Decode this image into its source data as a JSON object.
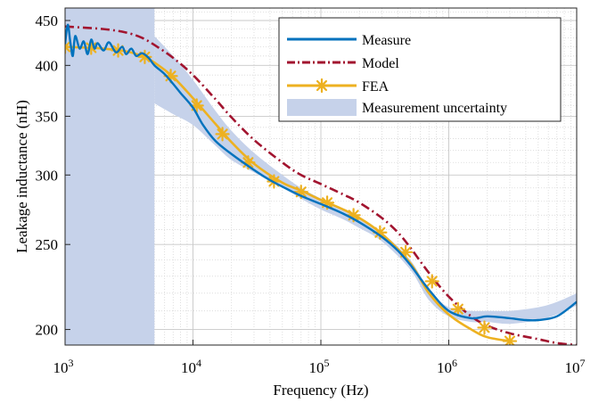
{
  "chart_data": {
    "type": "line",
    "xlabel": "Frequency (Hz)",
    "ylabel": "Leakage inductance (nH)",
    "x_scale": "log",
    "y_scale": "log",
    "xlim": [
      1000,
      10000000
    ],
    "ylim": [
      192,
      465
    ],
    "grid": true,
    "legend_placement": "top-right",
    "x_ticks": [
      {
        "value": 1000,
        "base": "10",
        "exp": "3"
      },
      {
        "value": 10000,
        "base": "10",
        "exp": "4"
      },
      {
        "value": 100000,
        "base": "10",
        "exp": "5"
      },
      {
        "value": 1000000,
        "base": "10",
        "exp": "6"
      },
      {
        "value": 10000000,
        "base": "10",
        "exp": "7"
      }
    ],
    "y_ticks": [
      200,
      250,
      300,
      350,
      400,
      450
    ],
    "uncertainty_band": {
      "name": "Measurement uncertainty",
      "color": "#c6d2ea",
      "full_band_until": 5000,
      "x": [
        5000,
        7000,
        10000,
        15000,
        20000,
        30000,
        50000,
        70000,
        100000,
        150000,
        200000,
        300000,
        500000,
        700000,
        1000000,
        1500000,
        2000000,
        3000000,
        5000000,
        7000000,
        10000000
      ],
      "upper": [
        432,
        410,
        385,
        355,
        337,
        318,
        300,
        290,
        282,
        274,
        268,
        258,
        240,
        222,
        212,
        210,
        210,
        210,
        212,
        215,
        220
      ],
      "lower": [
        362,
        352,
        342,
        324,
        312,
        302,
        290,
        282,
        274,
        267,
        261,
        252,
        234,
        216,
        207,
        204,
        204,
        203,
        205,
        208,
        213
      ]
    },
    "series": [
      {
        "name": "Measure",
        "color": "#0072bd",
        "style": "solid",
        "x": [
          1000,
          1050,
          1100,
          1150,
          1200,
          1300,
          1400,
          1500,
          1600,
          1700,
          1800,
          2000,
          2200,
          2500,
          2800,
          3000,
          3300,
          3600,
          4000,
          4500,
          5000,
          6000,
          7000,
          8000,
          10000,
          12000,
          15000,
          20000,
          30000,
          40000,
          50000,
          70000,
          100000,
          150000,
          200000,
          300000,
          400000,
          500000,
          700000,
          1000000,
          1500000,
          2000000,
          3000000,
          4000000,
          5000000,
          7000000,
          10000000
        ],
        "y": [
          423,
          445,
          425,
          410,
          432,
          418,
          426,
          412,
          428,
          418,
          424,
          416,
          425,
          414,
          420,
          412,
          418,
          410,
          413,
          408,
          400,
          391,
          381,
          372,
          358,
          342,
          328,
          317,
          304,
          296,
          291,
          284,
          278,
          271,
          265,
          255,
          246,
          237,
          222,
          210,
          206,
          207,
          206,
          205,
          205,
          207,
          215
        ]
      },
      {
        "name": "Model",
        "color": "#a2142f",
        "style": "dashdot",
        "x": [
          1000,
          2000,
          3000,
          4000,
          5000,
          7000,
          10000,
          15000,
          20000,
          30000,
          50000,
          70000,
          100000,
          150000,
          200000,
          300000,
          400000,
          500000,
          700000,
          1000000,
          1500000,
          2000000,
          3000000,
          5000000,
          7000000,
          10000000
        ],
        "y": [
          443,
          440,
          436,
          430,
          422,
          408,
          390,
          366,
          349,
          329,
          310,
          300,
          293,
          285,
          279,
          268,
          258,
          248,
          232,
          218,
          207,
          202,
          198,
          195,
          193,
          192
        ]
      },
      {
        "name": "FEA",
        "color": "#edb120",
        "style": "solid",
        "marker": "asterisk",
        "x": [
          1000,
          1500,
          2000,
          3000,
          4000,
          5000,
          7000,
          10000,
          15000,
          20000,
          30000,
          50000,
          70000,
          100000,
          150000,
          200000,
          300000,
          500000,
          700000,
          1000000,
          1500000,
          2000000,
          3000000
        ],
        "y": [
          420,
          419,
          418,
          415,
          410,
          403,
          388,
          367,
          343,
          327,
          309,
          294,
          288,
          281,
          274,
          268,
          257,
          238,
          220,
          208,
          200,
          196,
          194
        ],
        "marker_x": [
          1000,
          1600,
          2600,
          4200,
          6700,
          10700,
          17000,
          27000,
          43000,
          70000,
          112000,
          180000,
          290000,
          460000,
          740000,
          1180000,
          1900000,
          3000000
        ],
        "marker_y": [
          420,
          419,
          416,
          409,
          389,
          360,
          334,
          310,
          295,
          287,
          279,
          270,
          258,
          245,
          227,
          211,
          201,
          194
        ]
      }
    ],
    "legend": [
      "Measure",
      "Model",
      "FEA",
      "Measurement uncertainty"
    ]
  }
}
